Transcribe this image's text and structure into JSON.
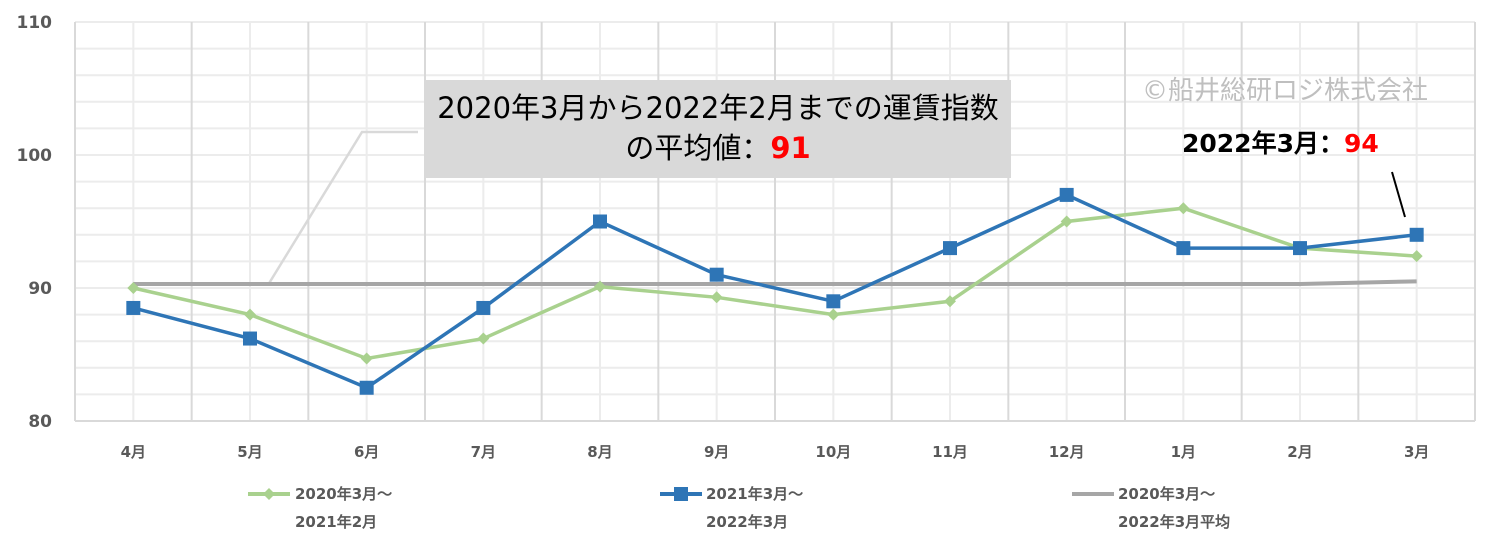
{
  "chart_data": {
    "type": "line",
    "categories": [
      "4月",
      "5月",
      "6月",
      "7月",
      "8月",
      "9月",
      "10月",
      "11月",
      "12月",
      "1月",
      "2月",
      "3月"
    ],
    "ylim": [
      80,
      110
    ],
    "yticks": [
      80,
      90,
      100,
      110
    ],
    "grid": true,
    "legend_position": "bottom",
    "series": [
      {
        "name": "2020年3月～2021年2月",
        "color": "#a9d18e",
        "marker": "diamond",
        "values": [
          90,
          88,
          84.7,
          86.2,
          90.1,
          89.3,
          88,
          89,
          95,
          96,
          93,
          92.4
        ]
      },
      {
        "name": "2021年3月～2022年3月",
        "color": "#2e75b6",
        "marker": "square",
        "values": [
          88.5,
          86.2,
          82.5,
          88.5,
          95,
          91,
          89,
          93,
          97,
          93,
          93,
          94
        ]
      },
      {
        "name": "2020年3月～2022年3月平均",
        "color": "#a6a6a6",
        "marker": "none",
        "values": [
          90.3,
          90.3,
          90.3,
          90.3,
          90.3,
          90.3,
          90.3,
          90.3,
          90.3,
          90.3,
          90.3,
          90.5
        ]
      }
    ],
    "annotations": {
      "callout_text": "2020年3月から2022年2月までの運賃指数の平均値：",
      "callout_value": "91",
      "point_label": "2022年3月：",
      "point_value": "94",
      "watermark": "©船井総研ロジ株式会社"
    }
  },
  "legend": [
    {
      "line1": "2020年3月～",
      "line2": "2021年2月"
    },
    {
      "line1": "2021年3月～",
      "line2": "2022年3月"
    },
    {
      "line1": "2020年3月～",
      "line2": "2022年3月平均"
    }
  ]
}
